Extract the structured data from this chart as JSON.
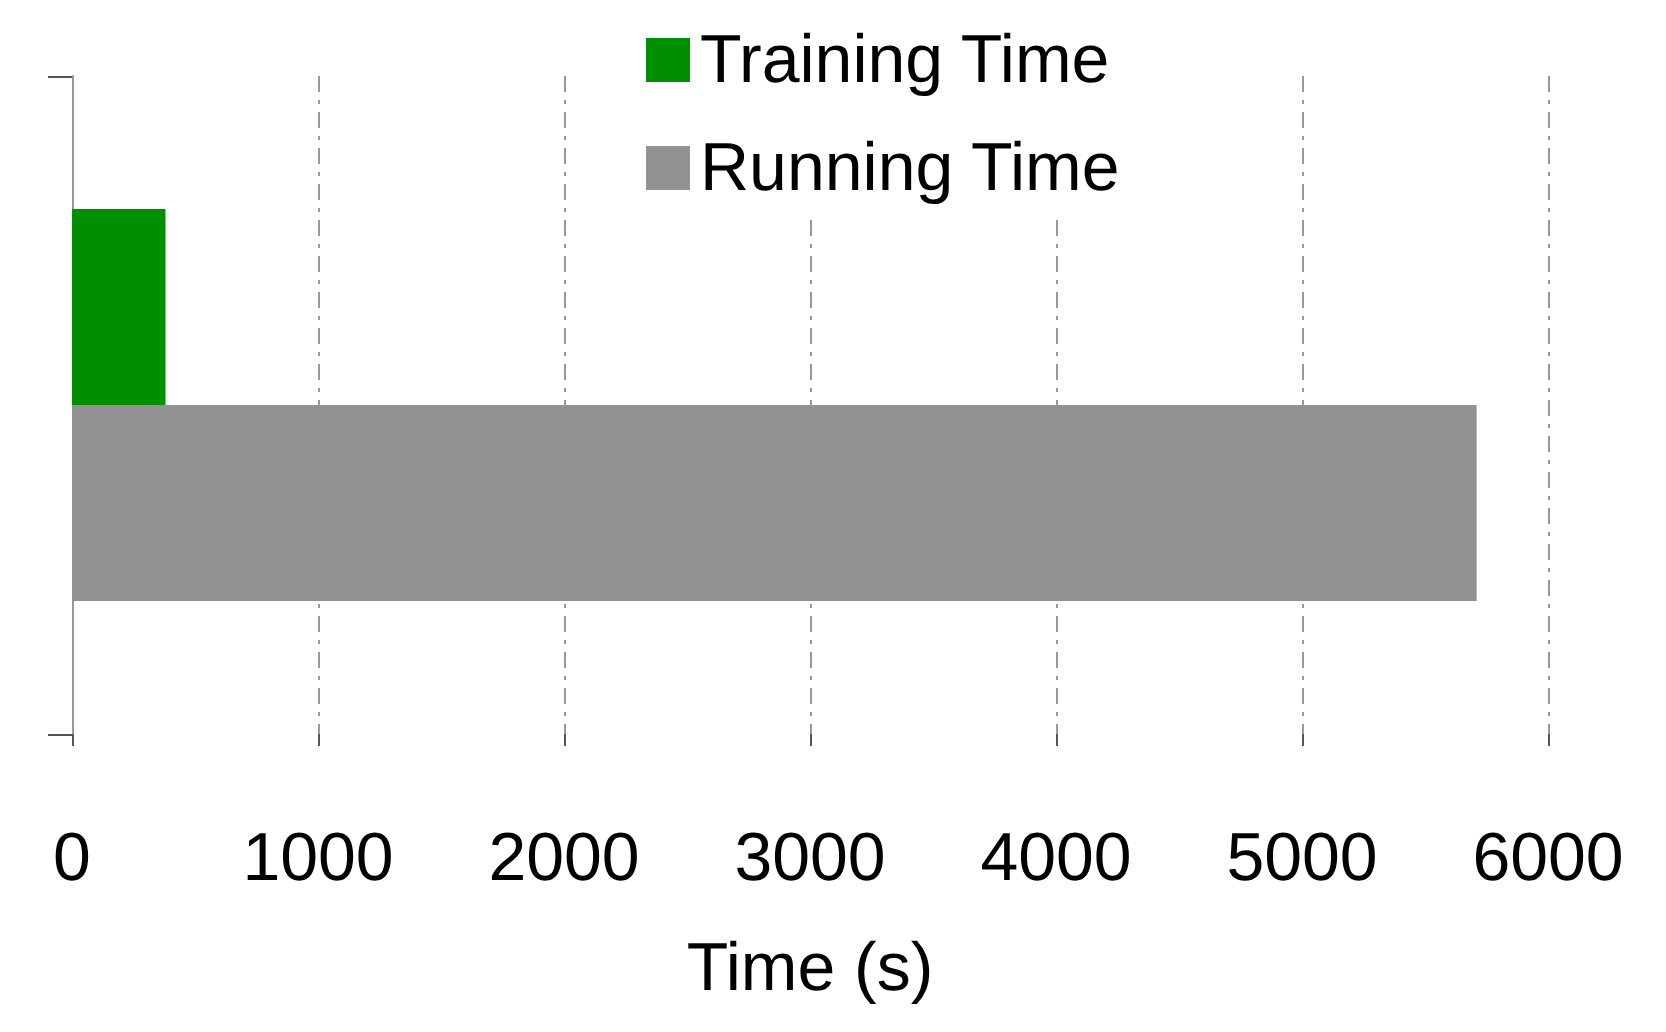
{
  "chart_data": {
    "type": "bar",
    "orientation": "horizontal",
    "categories": [
      null
    ],
    "series": [
      {
        "name": "Training Time",
        "color": "#008f00",
        "values": [
          380
        ]
      },
      {
        "name": "Running Time",
        "color": "#929292",
        "values": [
          5710
        ]
      }
    ],
    "xlabel": "Time (s)",
    "xlim": [
      0,
      6000
    ],
    "xticks": [
      0,
      1000,
      2000,
      3000,
      4000,
      5000,
      6000
    ],
    "grid": "x",
    "legend": "top"
  }
}
